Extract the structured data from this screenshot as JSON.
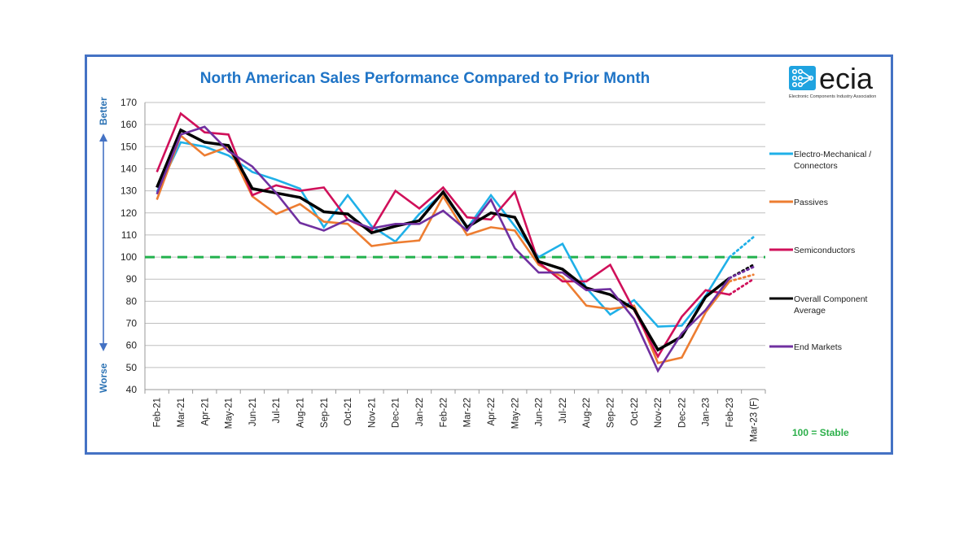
{
  "logo": {
    "name": "ecia",
    "subtitle": "Electronic Components Industry Association",
    "icon": "circuit-grid-icon",
    "color": "#1FA3E0"
  },
  "annotations": {
    "better": "Better",
    "worse": "Worse",
    "stable_note": "100 = Stable"
  },
  "colors": {
    "frame": "#4472C4",
    "title": "#1F74C6",
    "reference_line": "#22B14C",
    "gridline": "#BFBFBF"
  },
  "chart_data": {
    "type": "line",
    "title": "North American Sales Performance Compared to Prior Month",
    "xlabel": "",
    "ylabel": "",
    "ylim": [
      40,
      170
    ],
    "yticks": [
      40,
      50,
      60,
      70,
      80,
      90,
      100,
      110,
      120,
      130,
      140,
      150,
      160,
      170
    ],
    "grid": true,
    "legend_position": "right",
    "reference_line": {
      "value": 100,
      "style": "dashed",
      "color": "#22B14C"
    },
    "categories": [
      "Feb-21",
      "Mar-21",
      "Apr-21",
      "May-21",
      "Jun-21",
      "Jul-21",
      "Aug-21",
      "Sep-21",
      "Oct-21",
      "Nov-21",
      "Dec-21",
      "Jan-22",
      "Feb-22",
      "Mar-22",
      "Apr-22",
      "May-22",
      "Jun-22",
      "Jul-22",
      "Aug-22",
      "Sep-22",
      "Oct-22",
      "Nov-22",
      "Dec-22",
      "Jan-23",
      "Feb-23",
      "Mar-23 (F)"
    ],
    "forecast_from_index": 24,
    "series": [
      {
        "name": "Electro-Mechanical / Connectors",
        "color": "#1FB0E8",
        "values": [
          129.5,
          152,
          150,
          146,
          138.5,
          135,
          131,
          113.5,
          128,
          114,
          107,
          119.5,
          129,
          113,
          128,
          114,
          100,
          106,
          86,
          74,
          80.5,
          68.5,
          69,
          82.5,
          100,
          109
        ]
      },
      {
        "name": "Passives",
        "color": "#ED7D31",
        "values": [
          126,
          155,
          146,
          150,
          127.5,
          119.5,
          124,
          116,
          115,
          105,
          106.5,
          107.5,
          127.5,
          110,
          113.5,
          112,
          96.5,
          91,
          78,
          76.5,
          78,
          52,
          54.5,
          75,
          89,
          92
        ]
      },
      {
        "name": "Semiconductors",
        "color": "#D0105A",
        "values": [
          138.5,
          165,
          156.5,
          155.5,
          128,
          132.5,
          130,
          131.5,
          117,
          112,
          130,
          122,
          131.5,
          118,
          117,
          129.5,
          97.5,
          89,
          89,
          96.5,
          76,
          55,
          73,
          85,
          83,
          90
        ]
      },
      {
        "name": "Overall Component Average",
        "color": "#000000",
        "values": [
          131.5,
          157.5,
          152,
          150.5,
          131,
          129,
          127,
          120.5,
          119.5,
          111,
          114,
          116.5,
          129.5,
          113.5,
          120,
          118,
          98,
          94.5,
          86,
          83,
          76.5,
          58,
          64,
          82,
          90.5,
          96.5
        ]
      },
      {
        "name": "End Markets",
        "color": "#7030A0",
        "values": [
          128.5,
          155.5,
          159,
          148,
          141,
          129,
          115.5,
          112,
          117,
          113,
          115,
          115,
          121,
          112,
          126,
          104,
          93,
          93,
          85,
          85.5,
          72,
          48.5,
          65.5,
          76,
          90.5,
          95.5
        ]
      }
    ]
  }
}
